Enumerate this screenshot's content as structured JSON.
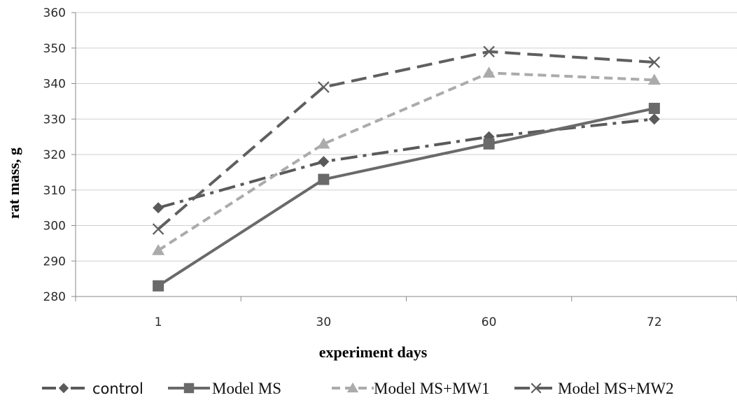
{
  "chart_data": {
    "type": "line",
    "title": "",
    "xlabel": "experiment days",
    "ylabel": "rat mass, g",
    "categories": [
      "1",
      "30",
      "60",
      "72"
    ],
    "ylim": [
      280,
      360
    ],
    "yticks": [
      280,
      290,
      300,
      310,
      320,
      330,
      340,
      350,
      360
    ],
    "grid": "horizontal",
    "legend_position": "bottom",
    "series": [
      {
        "name": "control",
        "values": [
          305,
          318,
          325,
          330
        ],
        "color": "#5a5a5a",
        "marker": "diamond",
        "dash": "dash-dot"
      },
      {
        "name": "Model MS",
        "values": [
          283,
          313,
          323,
          333
        ],
        "color": "#6a6a6a",
        "marker": "square",
        "dash": "solid"
      },
      {
        "name": "Model MS+MW1",
        "values": [
          293,
          323,
          343,
          341
        ],
        "color": "#ababab",
        "marker": "triangle",
        "dash": "short-dash"
      },
      {
        "name": "Model MS+MW2",
        "values": [
          299,
          339,
          349,
          346
        ],
        "color": "#5f5f5f",
        "marker": "x",
        "dash": "long-dash"
      }
    ]
  }
}
